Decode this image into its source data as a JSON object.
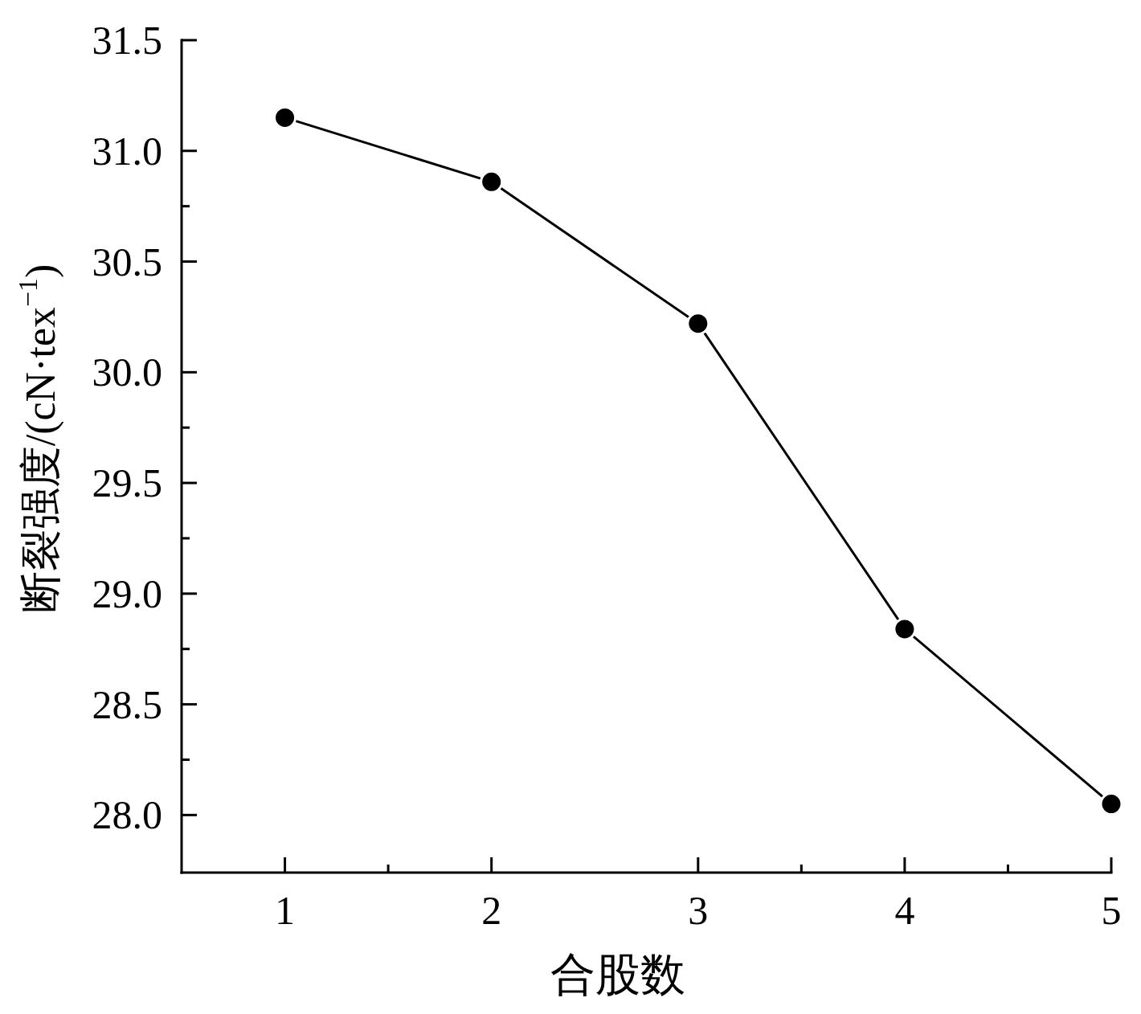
{
  "chart_data": {
    "type": "line",
    "xlabel": "合股数",
    "ylabel": "断裂强度/(cN·tex$^{−1}$)",
    "x": [
      1,
      2,
      3,
      4,
      5
    ],
    "series": [
      {
        "color": "#000000",
        "values": [
          31.15,
          30.86,
          30.22,
          28.84,
          28.05
        ]
      }
    ],
    "xlim": [
      0.5,
      5
    ],
    "ylim": [
      27.74,
      31.5
    ],
    "xticks": [
      1,
      {
        "value": 1.5,
        "label": null
      },
      2,
      3,
      {
        "value": 3.5,
        "label": null
      },
      4,
      {
        "value": 4.5,
        "label": null
      },
      5
    ],
    "yticks": [
      {
        "value": 28,
        "label": "28.0"
      },
      {
        "value": 28.25,
        "label": null
      },
      28.5,
      {
        "value": 28.75,
        "label": null
      },
      {
        "value": 29,
        "label": "29.0"
      },
      {
        "value": 29.25,
        "label": null
      },
      29.5,
      {
        "value": 29.75,
        "label": null
      },
      {
        "value": 30,
        "label": "30.0"
      },
      30.5,
      {
        "value": 30.75,
        "label": null
      },
      {
        "value": 31,
        "label": "31.0"
      },
      31.5
    ],
    "marker": "circle",
    "line_style": "solid"
  }
}
